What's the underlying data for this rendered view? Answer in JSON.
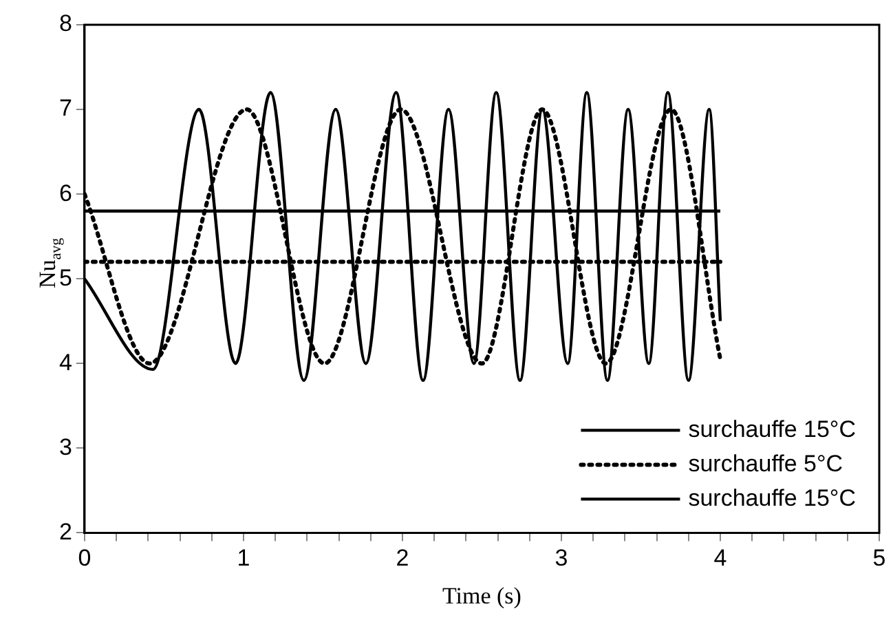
{
  "chart_data": {
    "type": "line",
    "xlabel": "Time (s)",
    "ylabel": "Nu$_{avg}$",
    "xlim": [
      0,
      5
    ],
    "ylim": [
      2,
      8
    ],
    "xticks": [
      0,
      {
        "value": 0.2,
        "label": null
      },
      {
        "value": 0.4,
        "label": null
      },
      {
        "value": 0.6,
        "label": null
      },
      {
        "value": 0.8,
        "label": null
      },
      1,
      {
        "value": 1.2,
        "label": null
      },
      {
        "value": 1.4,
        "label": null
      },
      {
        "value": 1.6,
        "label": null
      },
      {
        "value": 1.8,
        "label": null
      },
      2,
      {
        "value": 2.2,
        "label": null
      },
      {
        "value": 2.4,
        "label": null
      },
      {
        "value": 2.6,
        "label": null
      },
      {
        "value": 2.8,
        "label": null
      },
      3,
      {
        "value": 3.2,
        "label": null
      },
      {
        "value": 3.4,
        "label": null
      },
      {
        "value": 3.6,
        "label": null
      },
      {
        "value": 3.8,
        "label": null
      },
      4,
      {
        "value": 4.2,
        "label": null
      },
      {
        "value": 4.4,
        "label": null
      },
      {
        "value": 4.6,
        "label": null
      },
      {
        "value": 4.8,
        "label": null
      },
      5
    ],
    "yticks": [
      2,
      3,
      4,
      5,
      6,
      7,
      8
    ],
    "grid": false,
    "legend": "bottom right",
    "marker": "none",
    "series": [
      {
        "name": "surchauffe 15°C",
        "color": "#000000",
        "line_style": "solid",
        "x": [
          0,
          0.43,
          0.72,
          0.95,
          1.17,
          1.38,
          1.58,
          1.77,
          1.96,
          2.13,
          2.29,
          2.45,
          2.59,
          2.74,
          2.88,
          3.04,
          3.16,
          3.29,
          3.42,
          3.55,
          3.67,
          3.8,
          3.93,
          4.0
        ],
        "values": [
          5.0,
          3.93,
          7.0,
          4.0,
          7.2,
          3.8,
          7.0,
          4.0,
          7.2,
          3.8,
          7.0,
          4.0,
          7.2,
          3.8,
          7.0,
          4.0,
          7.2,
          3.8,
          7.0,
          4.0,
          7.2,
          3.8,
          7.0,
          4.5
        ]
      },
      {
        "name": "surchauffe 5°C",
        "color": "#000000",
        "line_style": "dotted",
        "x": [
          0,
          0.41,
          1.02,
          1.51,
          1.99,
          2.5,
          2.88,
          3.28,
          3.69,
          4.0
        ],
        "values": [
          6.0,
          4.0,
          7.0,
          4.0,
          7.0,
          4.0,
          7.0,
          4.0,
          7.0,
          4.05
        ]
      },
      {
        "name": "surchauffe 15°C",
        "color": "#000000",
        "line_style": "solid",
        "x": [
          0,
          4.0
        ],
        "values": [
          5.8,
          5.8
        ]
      },
      {
        "color": "#000000",
        "line_style": "dotted",
        "x": [
          0,
          4.0
        ],
        "values": [
          5.2,
          5.2
        ]
      }
    ]
  }
}
